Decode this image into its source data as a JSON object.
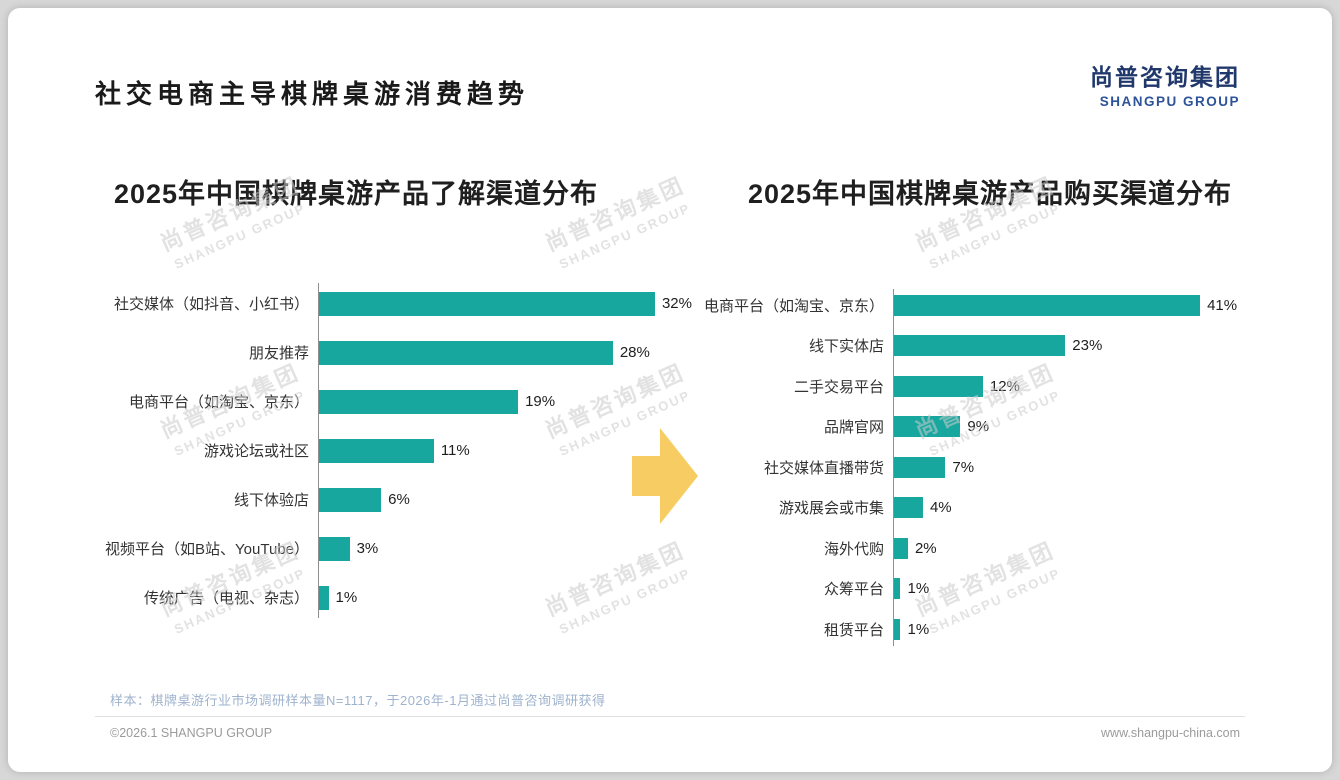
{
  "page": {
    "title": "社交电商主导棋牌桌游消费趋势",
    "logo": {
      "cn": "尚普咨询集团",
      "en": "SHANGPU GROUP"
    },
    "watermark": {
      "cn": "尚普咨询集团",
      "en": "SHANGPU GROUP"
    },
    "footer": {
      "sample_note": "样本：棋牌桌游行业市场调研样本量N=1117，于2026年-1月通过尚普咨询调研获得",
      "copyright": "©2026.1 SHANGPU GROUP",
      "website": "www.shangpu-china.com"
    },
    "colors": {
      "bar": "#17A79F",
      "arrow": "#F7CD63",
      "logo_cn": "#20386B",
      "logo_en": "#2D5398",
      "watermark": "#cccccc",
      "note": "#9FB3CE"
    }
  },
  "chart_data": [
    {
      "type": "bar",
      "orientation": "horizontal",
      "title": "2025年中国棋牌桌游产品了解渠道分布",
      "categories": [
        "社交媒体（如抖音、小红书）",
        "朋友推荐",
        "电商平台（如淘宝、京东）",
        "游戏论坛或社区",
        "线下体验店",
        "视频平台（如B站、YouTube）",
        "传统广告（电视、杂志）"
      ],
      "values": [
        32,
        28,
        19,
        11,
        6,
        3,
        1
      ],
      "unit": "%",
      "xlim": [
        0,
        35
      ],
      "grid": false,
      "legend": false,
      "bar_color": "#17A79F"
    },
    {
      "type": "bar",
      "orientation": "horizontal",
      "title": "2025年中国棋牌桌游产品购买渠道分布",
      "categories": [
        "电商平台（如淘宝、京东）",
        "线下实体店",
        "二手交易平台",
        "品牌官网",
        "社交媒体直播带货",
        "游戏展会或市集",
        "海外代购",
        "众筹平台",
        "租赁平台"
      ],
      "values": [
        41,
        23,
        12,
        9,
        7,
        4,
        2,
        1,
        1
      ],
      "unit": "%",
      "xlim": [
        0,
        45
      ],
      "grid": false,
      "legend": false,
      "bar_color": "#17A79F"
    }
  ]
}
